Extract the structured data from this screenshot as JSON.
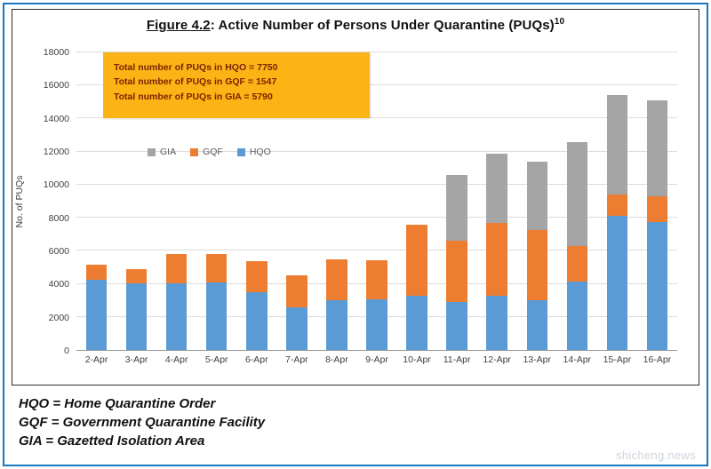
{
  "title": {
    "prefix": "Figure 4.2",
    "rest": ": Active Number of Persons Under Quarantine (PUQs)",
    "superscript": "10"
  },
  "annotation": {
    "bg_color": "#FBB316",
    "text_color": "#7A2500",
    "lines": [
      "Total number of PUQs in HQO = 7750",
      "Total number of PUQs in GQF = 1547",
      "Total number of PUQs in GIA = 5790"
    ]
  },
  "legend": [
    {
      "label": "GIA",
      "color": "#A5A5A5"
    },
    {
      "label": "GQF",
      "color": "#ED7D31"
    },
    {
      "label": "HQO",
      "color": "#5B9BD5"
    }
  ],
  "chart_data": {
    "type": "bar",
    "stacked": true,
    "title": "Figure 4.2: Active Number of Persons Under Quarantine (PUQs)",
    "ylabel": "No. of PUQs",
    "ylim": [
      0,
      18000
    ],
    "ytick_step": 2000,
    "grid": true,
    "legend_position": "inside-top-left",
    "categories": [
      "2-Apr",
      "3-Apr",
      "4-Apr",
      "5-Apr",
      "6-Apr",
      "7-Apr",
      "8-Apr",
      "9-Apr",
      "10-Apr",
      "11-Apr",
      "12-Apr",
      "13-Apr",
      "14-Apr",
      "15-Apr",
      "16-Apr"
    ],
    "series": [
      {
        "name": "HQO",
        "color": "#5B9BD5",
        "values": [
          4250,
          4050,
          4050,
          4100,
          3500,
          2600,
          3000,
          3050,
          3300,
          2900,
          3300,
          3000,
          4150,
          8100,
          7750
        ]
      },
      {
        "name": "GQF",
        "color": "#ED7D31",
        "values": [
          900,
          850,
          1750,
          1700,
          1900,
          1900,
          2500,
          2400,
          4300,
          3700,
          4400,
          4250,
          2150,
          1300,
          1547
        ]
      },
      {
        "name": "GIA",
        "color": "#A5A5A5",
        "values": [
          0,
          0,
          0,
          0,
          0,
          0,
          0,
          0,
          0,
          4000,
          4200,
          4150,
          6300,
          6000,
          5790
        ]
      }
    ]
  },
  "footnotes": [
    "HQO = Home Quarantine Order",
    "GQF = Government Quarantine Facility",
    "GIA = Gazetted Isolation Area"
  ],
  "watermark": "shicheng.news"
}
